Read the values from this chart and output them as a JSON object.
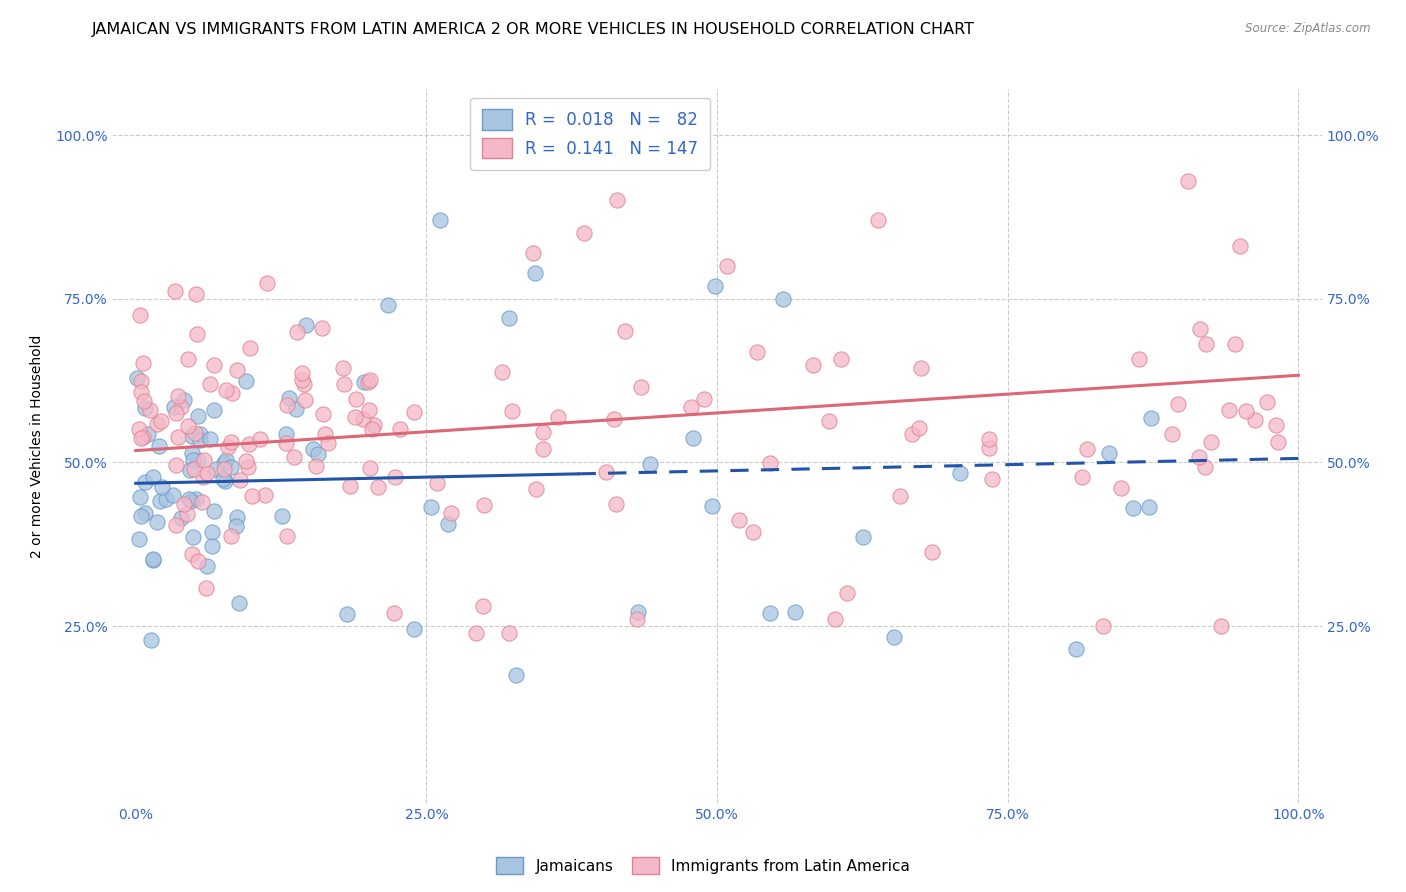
{
  "title": "JAMAICAN VS IMMIGRANTS FROM LATIN AMERICA 2 OR MORE VEHICLES IN HOUSEHOLD CORRELATION CHART",
  "source": "Source: ZipAtlas.com",
  "ylabel": "2 or more Vehicles in Household",
  "xlim": [
    -0.02,
    1.02
  ],
  "ylim": [
    -0.02,
    1.07
  ],
  "xticks": [
    0.0,
    0.25,
    0.5,
    0.75,
    1.0
  ],
  "yticks": [
    0.0,
    0.25,
    0.5,
    0.75,
    1.0
  ],
  "xticklabels": [
    "0.0%",
    "25.0%",
    "50.0%",
    "75.0%",
    "100.0%"
  ],
  "left_yticklabels": [
    "",
    "25.0%",
    "50.0%",
    "75.0%",
    "100.0%"
  ],
  "right_yticklabels": [
    "",
    "25.0%",
    "50.0%",
    "75.0%",
    "100.0%"
  ],
  "legend_r1": "R =  0.018   N =   82",
  "legend_r2": "R =  0.141   N = 147",
  "jamaicans_color": "#a8c4e0",
  "jamaicans_edge": "#6699cc",
  "latin_color": "#f4b8c8",
  "latin_edge": "#e08090",
  "line_blue_color": "#2255aa",
  "line_pink_color": "#dd6677",
  "scatter_size": 120,
  "background_color": "#ffffff",
  "grid_color": "#cccccc",
  "title_fontsize": 11.5,
  "axis_label_fontsize": 10,
  "tick_fontsize": 10,
  "tick_color": "#3366cc",
  "blue_line_intercept": 0.468,
  "blue_line_slope": 0.038,
  "pink_line_intercept": 0.518,
  "pink_line_slope": 0.115
}
